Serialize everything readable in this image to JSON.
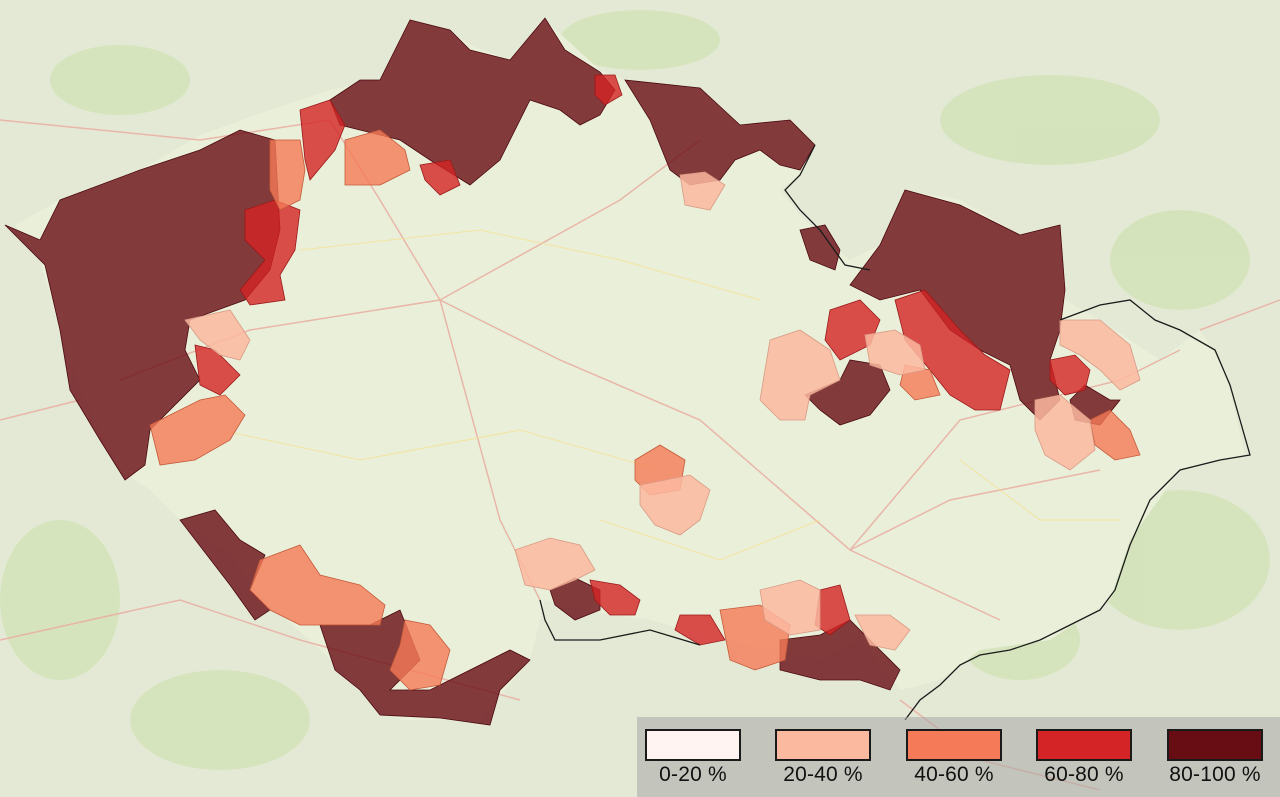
{
  "legend": {
    "items": [
      {
        "label": "0-20 %",
        "color": "#fff4f2"
      },
      {
        "label": "20-40 %",
        "color": "#fbb9a0"
      },
      {
        "label": "40-60 %",
        "color": "#f57a57"
      },
      {
        "label": "60-80 %",
        "color": "#d42425"
      },
      {
        "label": "80-100 %",
        "color": "#690d14"
      }
    ]
  },
  "map": {
    "land_color": "#e7ebd8",
    "interior_color": "#e9efd6",
    "forest_color": "#cfe0b2",
    "road_color": "#f0b8b0",
    "border_color": "#1a1a1a"
  }
}
